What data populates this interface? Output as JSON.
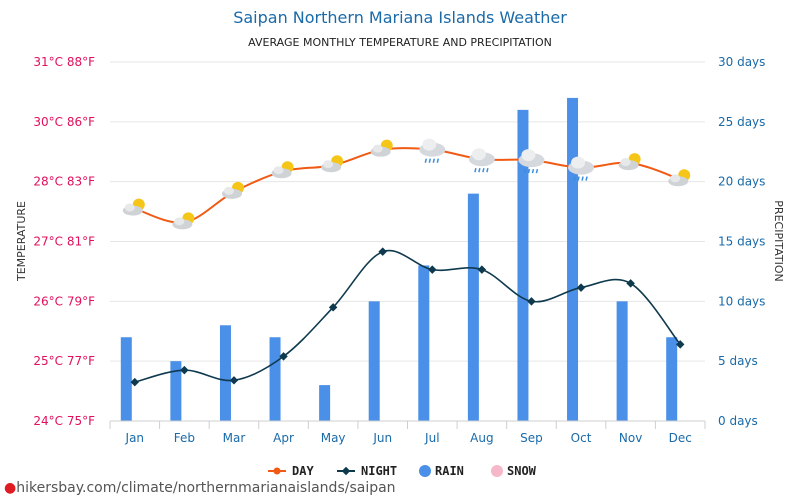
{
  "chart_data": {
    "type": "line+bar",
    "title": "Saipan Northern Mariana Islands Weather",
    "subtitle": "AVERAGE MONTHLY TEMPERATURE AND PRECIPITATION",
    "ylabel_left": "TEMPERATURE",
    "ylabel_right": "PRECIPITATION",
    "categories": [
      "Jan",
      "Feb",
      "Mar",
      "Apr",
      "May",
      "Jun",
      "Jul",
      "Aug",
      "Sep",
      "Oct",
      "Nov",
      "Dec"
    ],
    "left_ticks": [
      "24°C 75°F",
      "25°C 77°F",
      "26°C 79°F",
      "27°C 81°F",
      "28°C 83°F",
      "30°C 86°F",
      "31°C 88°F"
    ],
    "right_ticks": [
      "0 days",
      "5 days",
      "10 days",
      "15 days",
      "20 days",
      "25 days",
      "30 days"
    ],
    "ylim_right": [
      0,
      30
    ],
    "series": [
      {
        "name": "DAY",
        "type": "line",
        "color": "#f05a14",
        "values": [
          27.55,
          27.32,
          27.83,
          28.35,
          28.55,
          29.07,
          29.07,
          28.75,
          28.72,
          28.47,
          28.62,
          28.08
        ]
      },
      {
        "name": "NIGHT",
        "type": "line",
        "color": "#0f3a4e",
        "values": [
          24.65,
          24.85,
          24.68,
          25.08,
          25.9,
          26.83,
          26.53,
          26.53,
          26.0,
          26.23,
          26.3,
          25.28
        ]
      },
      {
        "name": "RAIN",
        "type": "bar",
        "color": "#4a90e8",
        "unit": "days",
        "values": [
          7,
          5,
          8,
          7,
          3,
          10,
          13,
          19,
          26,
          27,
          10,
          7
        ]
      },
      {
        "name": "SNOW",
        "type": "bar",
        "color": "#f5b8c8",
        "unit": "days",
        "values": [
          0,
          0,
          0,
          0,
          0,
          0,
          0,
          0,
          0,
          0,
          0,
          0
        ]
      }
    ],
    "weather_icons": [
      "sun-cloud",
      "sun-cloud",
      "sun-cloud",
      "sun-cloud",
      "sun-cloud",
      "sun-cloud",
      "rain-cloud",
      "rain-cloud",
      "rain-cloud",
      "rain-cloud",
      "sun-cloud",
      "sun-cloud"
    ],
    "grid": true,
    "legend_position": "bottom"
  },
  "footer": {
    "url": "hikersbay.com/climate/northernmarianaislands/saipan"
  }
}
